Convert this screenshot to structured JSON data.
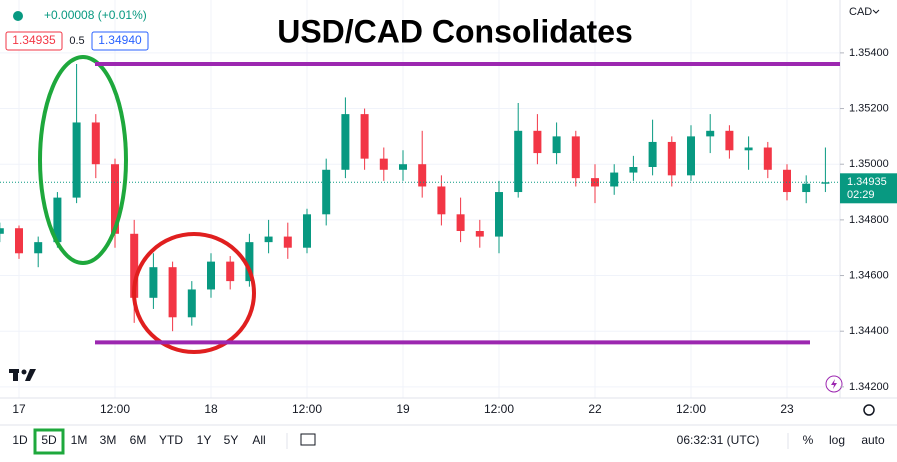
{
  "chart_data": {
    "type": "candlestick",
    "title": "USD/CAD Consolidates",
    "currency": "CAD",
    "change": "+0.00008 (+0.01%)",
    "bid": "1.34935",
    "spread": "0.5",
    "ask": "1.34940",
    "categories": [
      null,
      "17",
      null,
      null,
      null,
      null,
      "12:00",
      null,
      null,
      null,
      null,
      "18",
      null,
      null,
      null,
      null,
      "12:00",
      null,
      null,
      null,
      null,
      "19",
      null,
      null,
      null,
      null,
      "12:00",
      null,
      null,
      null,
      null,
      "22",
      null,
      null,
      null,
      null,
      "12:00",
      null,
      null,
      null,
      null,
      "23",
      null,
      null
    ],
    "open": [
      1.3475,
      1.3477,
      1.3468,
      1.3472,
      1.3488,
      1.3515,
      1.35,
      1.3475,
      1.3452,
      1.3463,
      1.3445,
      1.3455,
      1.3465,
      1.3458,
      1.3472,
      1.3474,
      1.347,
      1.3482,
      1.3498,
      1.3518,
      1.3502,
      1.3498,
      1.35,
      1.3492,
      1.3482,
      1.3476,
      1.3474,
      1.349,
      1.3512,
      1.3504,
      1.351,
      1.3495,
      1.3492,
      1.3497,
      1.3499,
      1.3508,
      1.3496,
      1.351,
      1.3512,
      1.3505,
      1.3506,
      1.3498,
      1.349,
      1.3493
    ],
    "high": [
      1.3479,
      1.3478,
      1.3474,
      1.349,
      1.3536,
      1.3518,
      1.3502,
      1.348,
      1.3468,
      1.3465,
      1.3458,
      1.3468,
      1.3467,
      1.3475,
      1.348,
      1.3479,
      1.3484,
      1.3502,
      1.3524,
      1.352,
      1.3506,
      1.3505,
      1.3512,
      1.3496,
      1.3488,
      1.348,
      1.3494,
      1.3522,
      1.3518,
      1.3515,
      1.3512,
      1.35,
      1.35,
      1.3503,
      1.3516,
      1.351,
      1.3514,
      1.3518,
      1.3514,
      1.351,
      1.3508,
      1.35,
      1.3496,
      1.3506
    ],
    "low": [
      1.3472,
      1.3466,
      1.3463,
      1.347,
      1.3486,
      1.3495,
      1.347,
      1.3443,
      1.3448,
      1.344,
      1.3442,
      1.3452,
      1.3455,
      1.3456,
      1.3468,
      1.3466,
      1.3468,
      1.3478,
      1.3495,
      1.3498,
      1.3494,
      1.3494,
      1.3488,
      1.3478,
      1.3472,
      1.347,
      1.3468,
      1.3488,
      1.35,
      1.35,
      1.3492,
      1.3486,
      1.3489,
      1.3494,
      1.3496,
      1.3492,
      1.3494,
      1.3504,
      1.3502,
      1.3498,
      1.3495,
      1.3487,
      1.3486,
      1.349
    ],
    "close": [
      1.3477,
      1.3468,
      1.3472,
      1.3488,
      1.3515,
      1.35,
      1.3475,
      1.3452,
      1.3463,
      1.3445,
      1.3455,
      1.3465,
      1.3458,
      1.3472,
      1.3474,
      1.347,
      1.3482,
      1.3498,
      1.3518,
      1.3502,
      1.3498,
      1.35,
      1.3492,
      1.3482,
      1.3476,
      1.3474,
      1.349,
      1.3512,
      1.3504,
      1.351,
      1.3495,
      1.3492,
      1.3497,
      1.3499,
      1.3508,
      1.3496,
      1.351,
      1.3512,
      1.3505,
      1.3506,
      1.3498,
      1.349,
      1.3493,
      1.34935
    ],
    "up_color": "#089981",
    "down_color": "#f23645",
    "ylim": [
      1.3416,
      1.3559
    ],
    "yticks": [
      {
        "value": 1.342,
        "label": "1.34200"
      },
      {
        "value": 1.344,
        "label": "1.34400"
      },
      {
        "value": 1.346,
        "label": "1.34600"
      },
      {
        "value": 1.348,
        "label": "1.34800"
      },
      {
        "value": 1.35,
        "label": "1.35000"
      },
      {
        "value": 1.352,
        "label": "1.35200"
      },
      {
        "value": 1.354,
        "label": "1.35400"
      }
    ],
    "levels": [
      {
        "value": 1.3536,
        "color": "#9c27b0"
      },
      {
        "value": 1.3436,
        "color": "#9c27b0"
      }
    ],
    "last_price": 1.34935,
    "countdown": "02:29",
    "ranges": [
      "1D",
      "5D",
      "1M",
      "3M",
      "6M",
      "YTD",
      "1Y",
      "5Y",
      "All"
    ],
    "active_range": 1,
    "clock": "06:32:31 (UTC)",
    "scale_options": [
      "%",
      "log",
      "auto"
    ]
  }
}
